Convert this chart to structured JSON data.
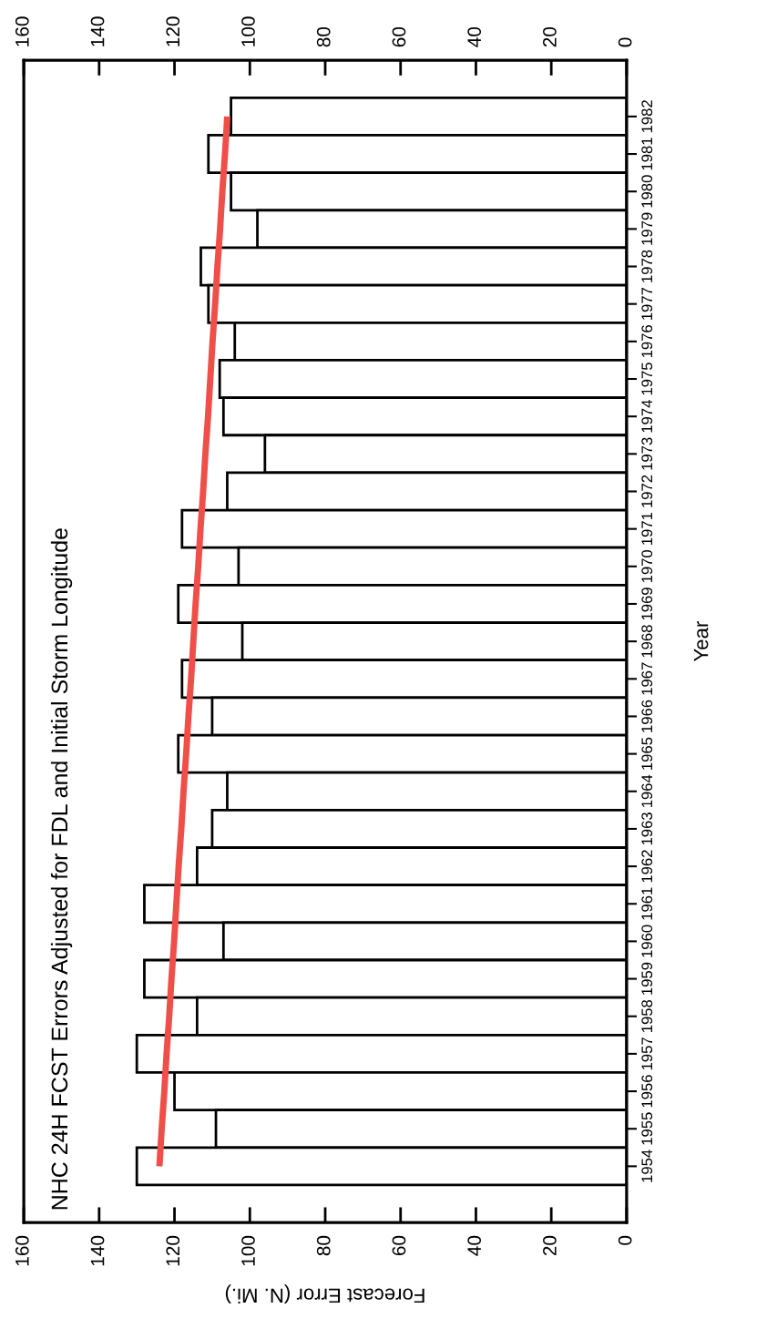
{
  "chart_data": {
    "type": "bar",
    "orientation": "horizontal",
    "title": "NHC 24H FCST Errors Adjusted for FDL and Initial Storm Longitude",
    "xlabel": "Forecast Error (N. Mi.)",
    "ylabel": "Year",
    "categories": [
      "1982",
      "1981",
      "1980",
      "1979",
      "1978",
      "1977",
      "1976",
      "1975",
      "1974",
      "1973",
      "1972",
      "1971",
      "1970",
      "1969",
      "1968",
      "1967",
      "1966",
      "1965",
      "1964",
      "1963",
      "1962",
      "1961",
      "1960",
      "1959",
      "1958",
      "1957",
      "1956",
      "1955",
      "1954"
    ],
    "series": [
      {
        "color": "#ffffff",
        "values": [
          105,
          111,
          105,
          98,
          113,
          111,
          104,
          108,
          107,
          96,
          106,
          118,
          103,
          119,
          102,
          118,
          110,
          119,
          106,
          110,
          114,
          128,
          107,
          128,
          114,
          130,
          120,
          109,
          130
        ]
      },
      {
        "type": "line",
        "color": "#ef4f48",
        "values": [
          106.0,
          106.6,
          107.3,
          107.9,
          108.6,
          109.2,
          109.9,
          110.5,
          111.1,
          111.8,
          112.4,
          113.1,
          113.7,
          114.4,
          115.0,
          115.6,
          116.3,
          116.9,
          117.6,
          118.2,
          118.9,
          119.5,
          120.1,
          120.8,
          121.4,
          122.1,
          122.7,
          123.4,
          124.0
        ]
      }
    ],
    "xlim": [
      160,
      0
    ],
    "xticks": [
      0,
      20,
      40,
      60,
      80,
      100,
      120,
      140,
      160
    ],
    "x2lim": [
      160,
      0
    ],
    "x2ticks": [
      0,
      20,
      40,
      60,
      80,
      100,
      120,
      140,
      160
    ],
    "grid": false,
    "legend": false
  }
}
